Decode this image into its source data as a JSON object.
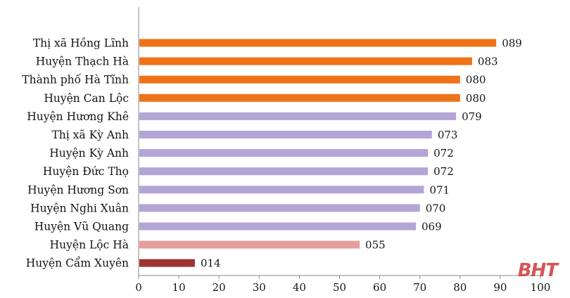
{
  "chart_data": {
    "type": "bar",
    "orientation": "horizontal",
    "categories": [
      "Thị xã Hồng Lĩnh",
      "Huyện Thạch Hà",
      "Thành phố Hà Tĩnh",
      "Huyện Can Lộc",
      "Huyện Hương Khê",
      "Thị xã Kỳ Anh",
      "Huyện Kỳ Anh",
      "Huyện Đức Thọ",
      "Huyện Hương Sơn",
      "Huyện Nghi Xuân",
      "Huyện Vũ Quang",
      "Huyện Lộc Hà",
      "Huyện Cẩm Xuyên"
    ],
    "values": [
      89,
      83,
      80,
      80,
      79,
      73,
      72,
      72,
      71,
      70,
      69,
      55,
      14
    ],
    "value_labels": [
      "089",
      "083",
      "080",
      "080",
      "079",
      "073",
      "072",
      "072",
      "071",
      "070",
      "069",
      "055",
      "014"
    ],
    "bar_colors": [
      "#EE7318",
      "#EE7318",
      "#EE7318",
      "#EE7318",
      "#B3A5D6",
      "#B3A5D6",
      "#B3A5D6",
      "#B3A5D6",
      "#B3A5D6",
      "#B3A5D6",
      "#B3A5D6",
      "#E79E9C",
      "#9E3331"
    ],
    "x_ticks": [
      "0",
      "10",
      "20",
      "30",
      "40",
      "50",
      "60",
      "70",
      "80",
      "90",
      "100"
    ],
    "xlim": [
      0,
      100
    ],
    "title": "",
    "xlabel": "",
    "ylabel": "",
    "grid": false,
    "legend": "none"
  },
  "watermark": {
    "text": "BHT",
    "color": "#C81E1E"
  }
}
